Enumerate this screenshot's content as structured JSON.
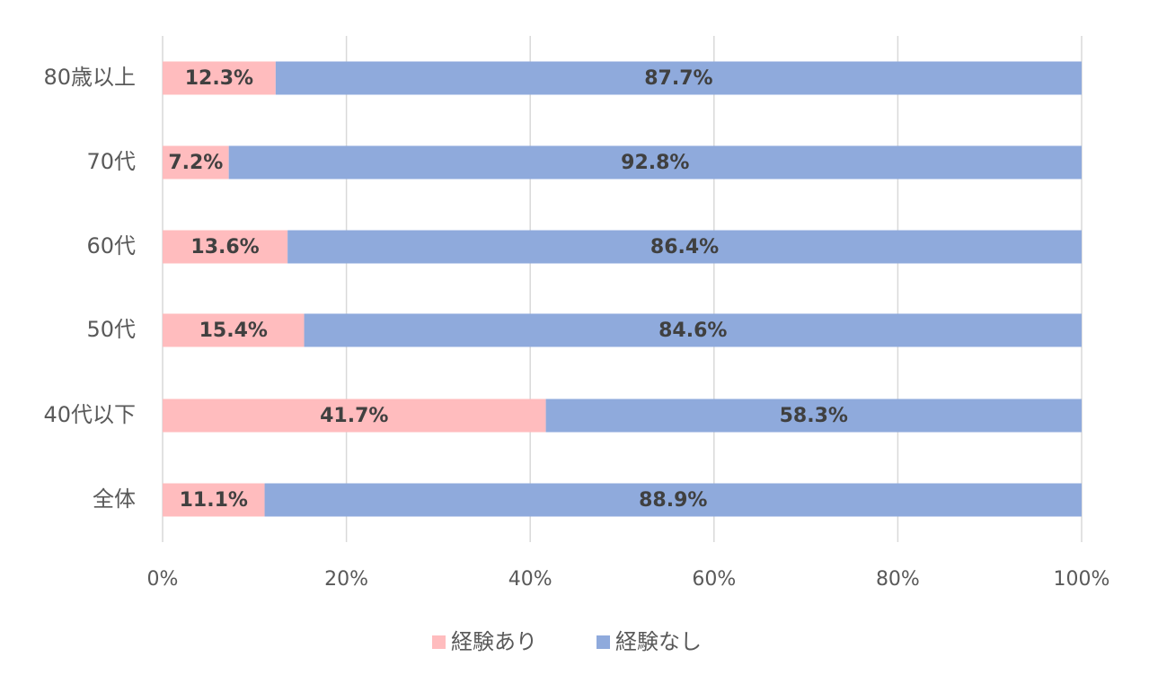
{
  "chart_data": {
    "type": "bar",
    "orientation": "horizontal",
    "stacked": "percent",
    "title": "",
    "xlabel": "",
    "ylabel": "",
    "xlim": [
      0,
      100
    ],
    "x_ticks": [
      "0%",
      "20%",
      "40%",
      "60%",
      "80%",
      "100%"
    ],
    "grid": true,
    "legend_position": "bottom",
    "categories": [
      "80歳以上",
      "70代",
      "60代",
      "50代",
      "40代以下",
      "全体"
    ],
    "series": [
      {
        "name": "経験あり",
        "color": "#ffbcbe",
        "values": [
          12.3,
          7.2,
          13.6,
          15.4,
          41.7,
          11.1
        ],
        "labels": [
          "12.3%",
          "7.2%",
          "13.6%",
          "15.4%",
          "41.7%",
          "11.1%"
        ]
      },
      {
        "name": "経験なし",
        "color": "#8faadc",
        "values": [
          87.7,
          92.8,
          86.4,
          84.6,
          58.3,
          88.9
        ],
        "labels": [
          "87.7%",
          "92.8%",
          "86.4%",
          "84.6%",
          "58.3%",
          "88.9%"
        ]
      }
    ]
  }
}
